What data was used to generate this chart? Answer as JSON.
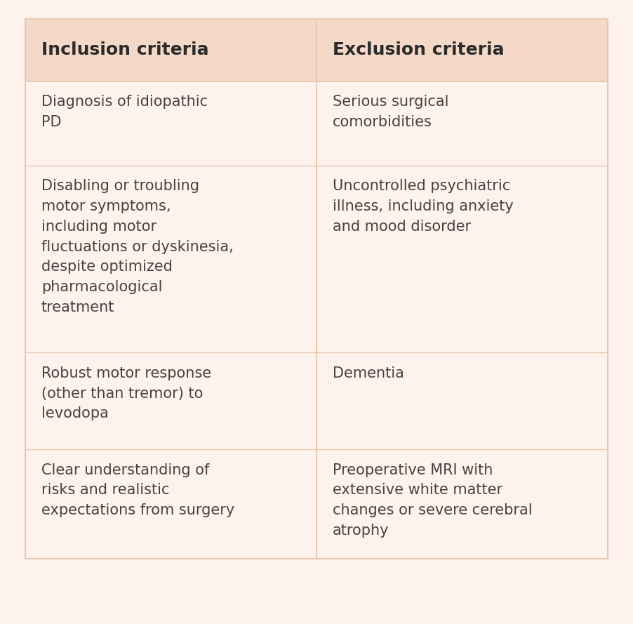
{
  "background_color": "#fdf3ec",
  "header_bg_color": "#f5d9c8",
  "header_text_color": "#2b2b2b",
  "body_text_color": "#4a4040",
  "divider_color": "#e8c8b0",
  "header_left": "Inclusion criteria",
  "header_right": "Exclusion criteria",
  "rows": [
    {
      "left": "Diagnosis of idiopathic\nPD",
      "right": "Serious surgical\ncomorbidities"
    },
    {
      "left": "Disabling or troubling\nmotor symptoms,\nincluding motor\nfluctuations or dyskinesia,\ndespite optimized\npharmacological\ntreatment",
      "right": "Uncontrolled psychiatric\nillness, including anxiety\nand mood disorder"
    },
    {
      "left": "Robust motor response\n(other than tremor) to\nlevodopa",
      "right": "Dementia"
    },
    {
      "left": "Clear understanding of\nrisks and realistic\nexpectations from surgery",
      "right": "Preoperative MRI with\nextensive white matter\nchanges or severe cerebral\natrophy"
    }
  ],
  "figsize": [
    9.02,
    8.89
  ],
  "dpi": 100
}
